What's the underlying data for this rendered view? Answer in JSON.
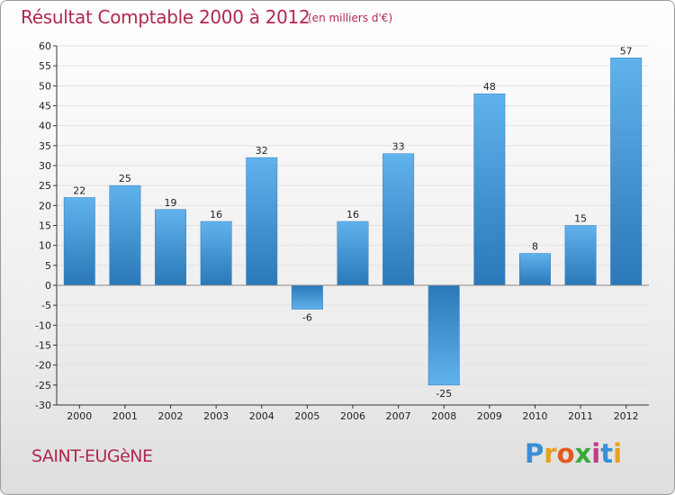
{
  "title": "Résultat Comptable 2000 à 2012",
  "subtitle": "(en milliers d'€)",
  "commune": "SAINT-EUGèNE",
  "logo": {
    "text": "Proxiti",
    "letters": [
      "P",
      "r",
      "o",
      "x",
      "i",
      "t",
      "i"
    ],
    "colors": [
      "#3a8fd6",
      "#e8a21a",
      "#e25a1c",
      "#3aa83a",
      "#c43a8a",
      "#3a8fd6",
      "#e8a21a"
    ]
  },
  "colors": {
    "title": "#b0284e",
    "bar_light": "#5eb0ea",
    "bar_dark": "#2a78b8",
    "grid": "#e2e2e2",
    "axis": "#333333"
  },
  "chart_data": {
    "type": "bar",
    "title": "Résultat Comptable 2000 à 2012",
    "subtitle": "(en milliers d'€)",
    "categories": [
      "2000",
      "2001",
      "2002",
      "2003",
      "2004",
      "2005",
      "2006",
      "2007",
      "2008",
      "2009",
      "2010",
      "2011",
      "2012"
    ],
    "values": [
      22,
      25,
      19,
      16,
      32,
      -6,
      16,
      33,
      -25,
      48,
      8,
      15,
      57
    ],
    "xlabel": "",
    "ylabel": "",
    "ylim": [
      -30,
      60
    ],
    "yticks": [
      60,
      55,
      50,
      45,
      40,
      35,
      30,
      25,
      20,
      15,
      10,
      5,
      0,
      -5,
      -10,
      -15,
      -20,
      -25,
      -30
    ],
    "grid": true
  }
}
